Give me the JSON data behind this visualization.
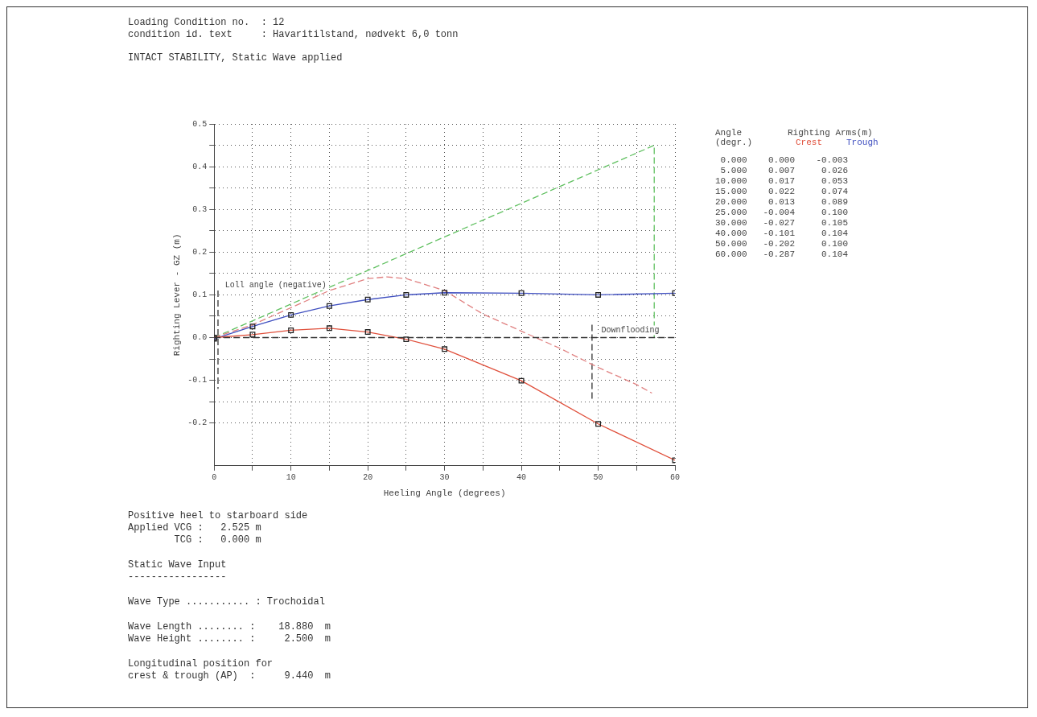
{
  "chart_data": {
    "type": "line",
    "title": "INTACT STABILITY, Static Wave applied",
    "xlabel": "Heeling Angle (degrees)",
    "ylabel": "Righting Lever - GZ (m)",
    "annotations": [
      "Loading Condition no.  : 12",
      "condition id. text     : Havaritilstand, nødvekt 6,0 tonn",
      "Angle (degr.)",
      "Righting Arms(m)",
      "Positive heel to starboard side",
      "Applied VCG :   2.525 m",
      "        TCG :   0.000 m",
      "Static Wave Input",
      "-----------------",
      "Wave Type ........... : Trochoidal",
      "Wave Length ........ :    18.880  m",
      "Wave Height ........ :     2.500  m",
      "Longitudinal position for",
      "crest & trough (AP)  :     9.440  m",
      " 0.000    0.000    -0.003",
      " 5.000    0.007     0.026",
      "10.000    0.017     0.053",
      "15.000    0.022     0.074",
      "20.000    0.013     0.089",
      "25.000   -0.004     0.100",
      "30.000   -0.027     0.105",
      "40.000   -0.101     0.104",
      "50.000   -0.202     0.100",
      "60.000   -0.287     0.104",
      {
        "text": "Downflooding",
        "x": 50,
        "y": 0
      },
      {
        "text": "Loll angle (negative)",
        "x": 1,
        "y": 0.105
      }
    ],
    "series": [
      {
        "name": "Crest",
        "type": "line",
        "color": "#e0503c",
        "marker": "square",
        "line_style": "solid",
        "x": [
          0,
          5,
          10,
          15,
          20,
          25,
          30,
          40,
          50,
          60
        ],
        "values": [
          0.0,
          0.007,
          0.017,
          0.022,
          0.013,
          -0.004,
          -0.027,
          -0.101,
          -0.202,
          -0.287
        ]
      },
      {
        "name": "Trough",
        "type": "line",
        "color": "#4050c0",
        "marker": "square",
        "line_style": "solid",
        "x": [
          0,
          5,
          10,
          15,
          20,
          25,
          30,
          40,
          50,
          60
        ],
        "values": [
          -0.003,
          0.026,
          0.053,
          0.074,
          0.089,
          0.1,
          0.105,
          0.104,
          0.1,
          0.104
        ]
      },
      {
        "type": "line",
        "color": "#e08080",
        "marker": "none",
        "line_style": "dashed",
        "x": [
          0,
          5,
          10,
          15,
          20,
          22.5,
          25,
          30,
          35,
          40,
          45,
          50,
          55,
          57
        ],
        "values": [
          0,
          0.03,
          0.07,
          0.11,
          0.138,
          0.142,
          0.138,
          0.11,
          0.055,
          0.015,
          -0.025,
          -0.07,
          -0.11,
          -0.13
        ]
      },
      {
        "type": "line",
        "color": "#60c060",
        "marker": "none",
        "line_style": "dashed",
        "x": [
          0,
          57.3,
          57.3
        ],
        "values": [
          0,
          0.45,
          0
        ]
      },
      {
        "type": "line",
        "color": "#333333",
        "marker": "none",
        "line_style": "dashed",
        "x": [
          49.2,
          49.2
        ],
        "values": [
          0.03,
          -0.15
        ]
      },
      {
        "type": "line",
        "color": "#333333",
        "marker": "none",
        "line_style": "dashed",
        "x": [
          0.5,
          0.5
        ],
        "values": [
          0.11,
          -0.12
        ]
      }
    ],
    "ref_lines": [
      {
        "axis": "y",
        "value": 0,
        "color": "#333333",
        "line_style": "dashed"
      }
    ],
    "xlim": [
      0,
      60
    ],
    "xticks": [
      0,
      {
        "value": 5,
        "label": null
      },
      10,
      {
        "value": 15,
        "label": null
      },
      20,
      {
        "value": 25,
        "label": null
      },
      30,
      {
        "value": 35,
        "label": null
      },
      40,
      {
        "value": 45,
        "label": null
      },
      50,
      {
        "value": 55,
        "label": null
      },
      60
    ],
    "ylim": [
      -0.3,
      0.5
    ],
    "yticks": [
      -0.2,
      {
        "value": -0.15,
        "label": null
      },
      -0.1,
      {
        "value": -0.05,
        "label": null
      },
      {
        "value": 0,
        "label": "0.0"
      },
      {
        "value": 0.05,
        "label": null
      },
      0.1,
      {
        "value": 0.15,
        "label": null
      },
      0.2,
      {
        "value": 0.25,
        "label": null
      },
      0.3,
      {
        "value": 0.35,
        "label": null
      },
      0.4,
      {
        "value": 0.45,
        "label": null
      },
      0.5
    ],
    "grid": true,
    "legend": false
  }
}
